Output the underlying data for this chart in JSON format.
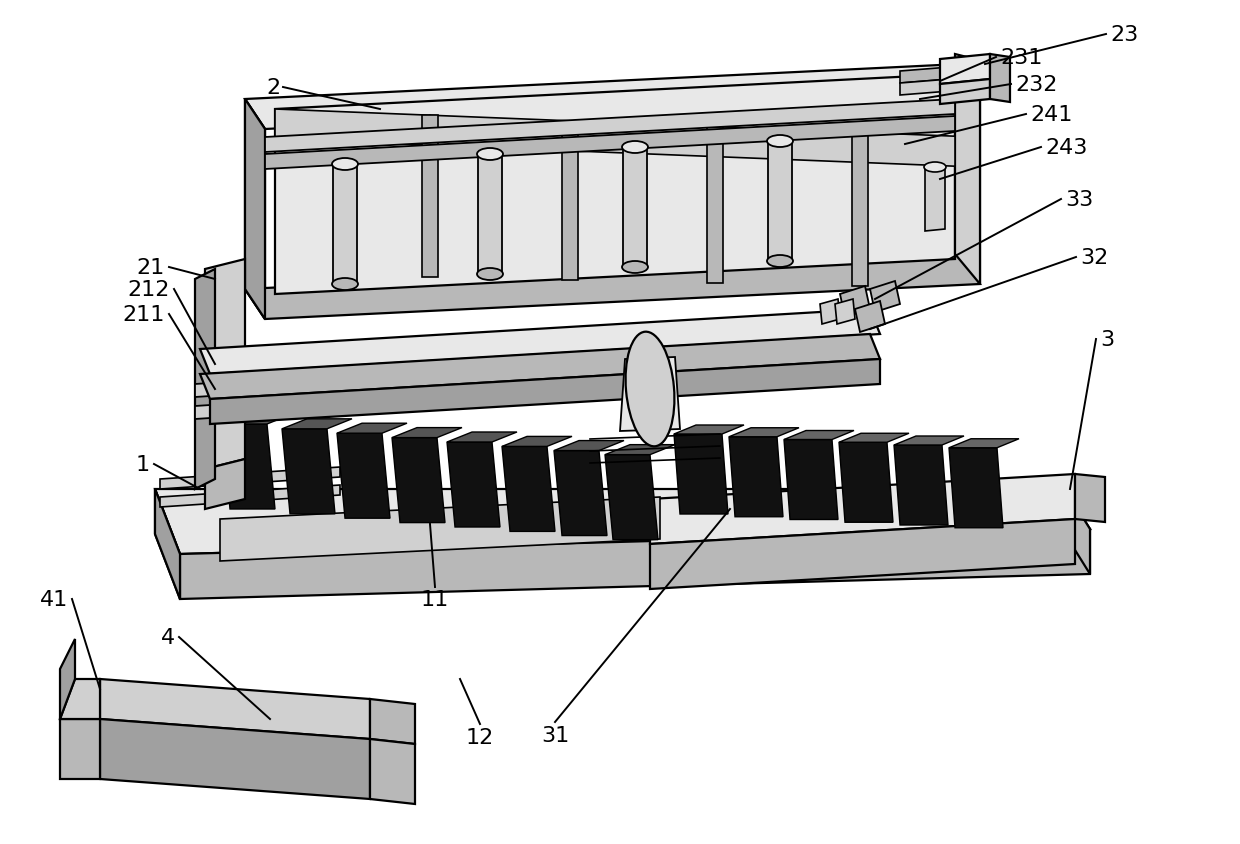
{
  "background_color": "#ffffff",
  "line_color": "#000000",
  "dark_fill": "#111111",
  "gray1": "#e8e8e8",
  "gray2": "#d0d0d0",
  "gray3": "#b8b8b8",
  "gray4": "#a0a0a0",
  "gray5": "#c8c8c8",
  "label_fontsize": 16,
  "line_width": 1.6
}
